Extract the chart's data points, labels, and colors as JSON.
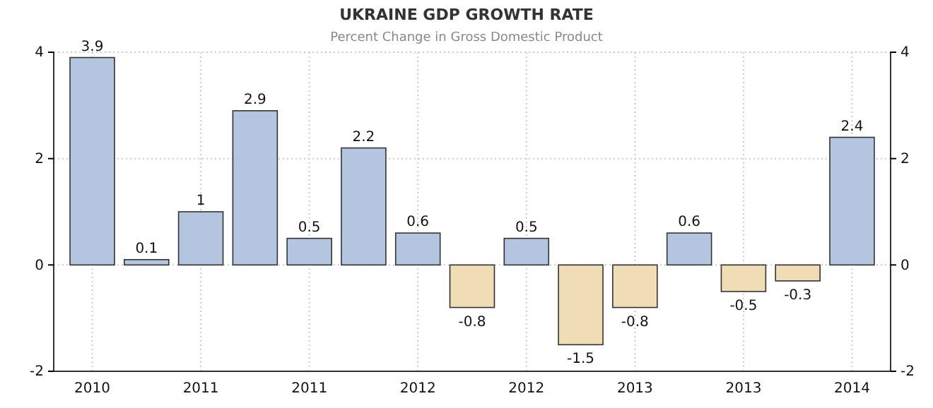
{
  "chart_data": {
    "type": "bar",
    "title": "UKRAINE GDP GROWTH RATE",
    "subtitle": "Percent Change in Gross Domestic Product",
    "categories": [
      "2010",
      null,
      "2011",
      null,
      "2011",
      null,
      "2012",
      null,
      "2012",
      null,
      "2013",
      null,
      "2013",
      null,
      "2014"
    ],
    "values": [
      3.9,
      0.1,
      1,
      2.9,
      0.5,
      2.2,
      0.6,
      -0.8,
      0.5,
      -1.5,
      -0.8,
      0.6,
      -0.5,
      -0.3,
      2.4
    ],
    "colors": [
      "#b3c5df",
      "#b3c5df",
      "#b3c5df",
      "#b3c5df",
      "#b3c5df",
      "#b3c5df",
      "#b3c5df",
      "#f0dcb5",
      "#b3c5df",
      "#f0dcb5",
      "#f0dcb5",
      "#b3c5df",
      "#f0dcb5",
      "#f0dcb5",
      "#b3c5df"
    ],
    "ylim": [
      -2,
      4
    ],
    "yticks": [
      -2,
      0,
      2,
      4
    ],
    "y2lim": [
      -2,
      4
    ],
    "y2ticks": [
      -2,
      0,
      2,
      4
    ],
    "grid": true,
    "data_labels": true
  }
}
